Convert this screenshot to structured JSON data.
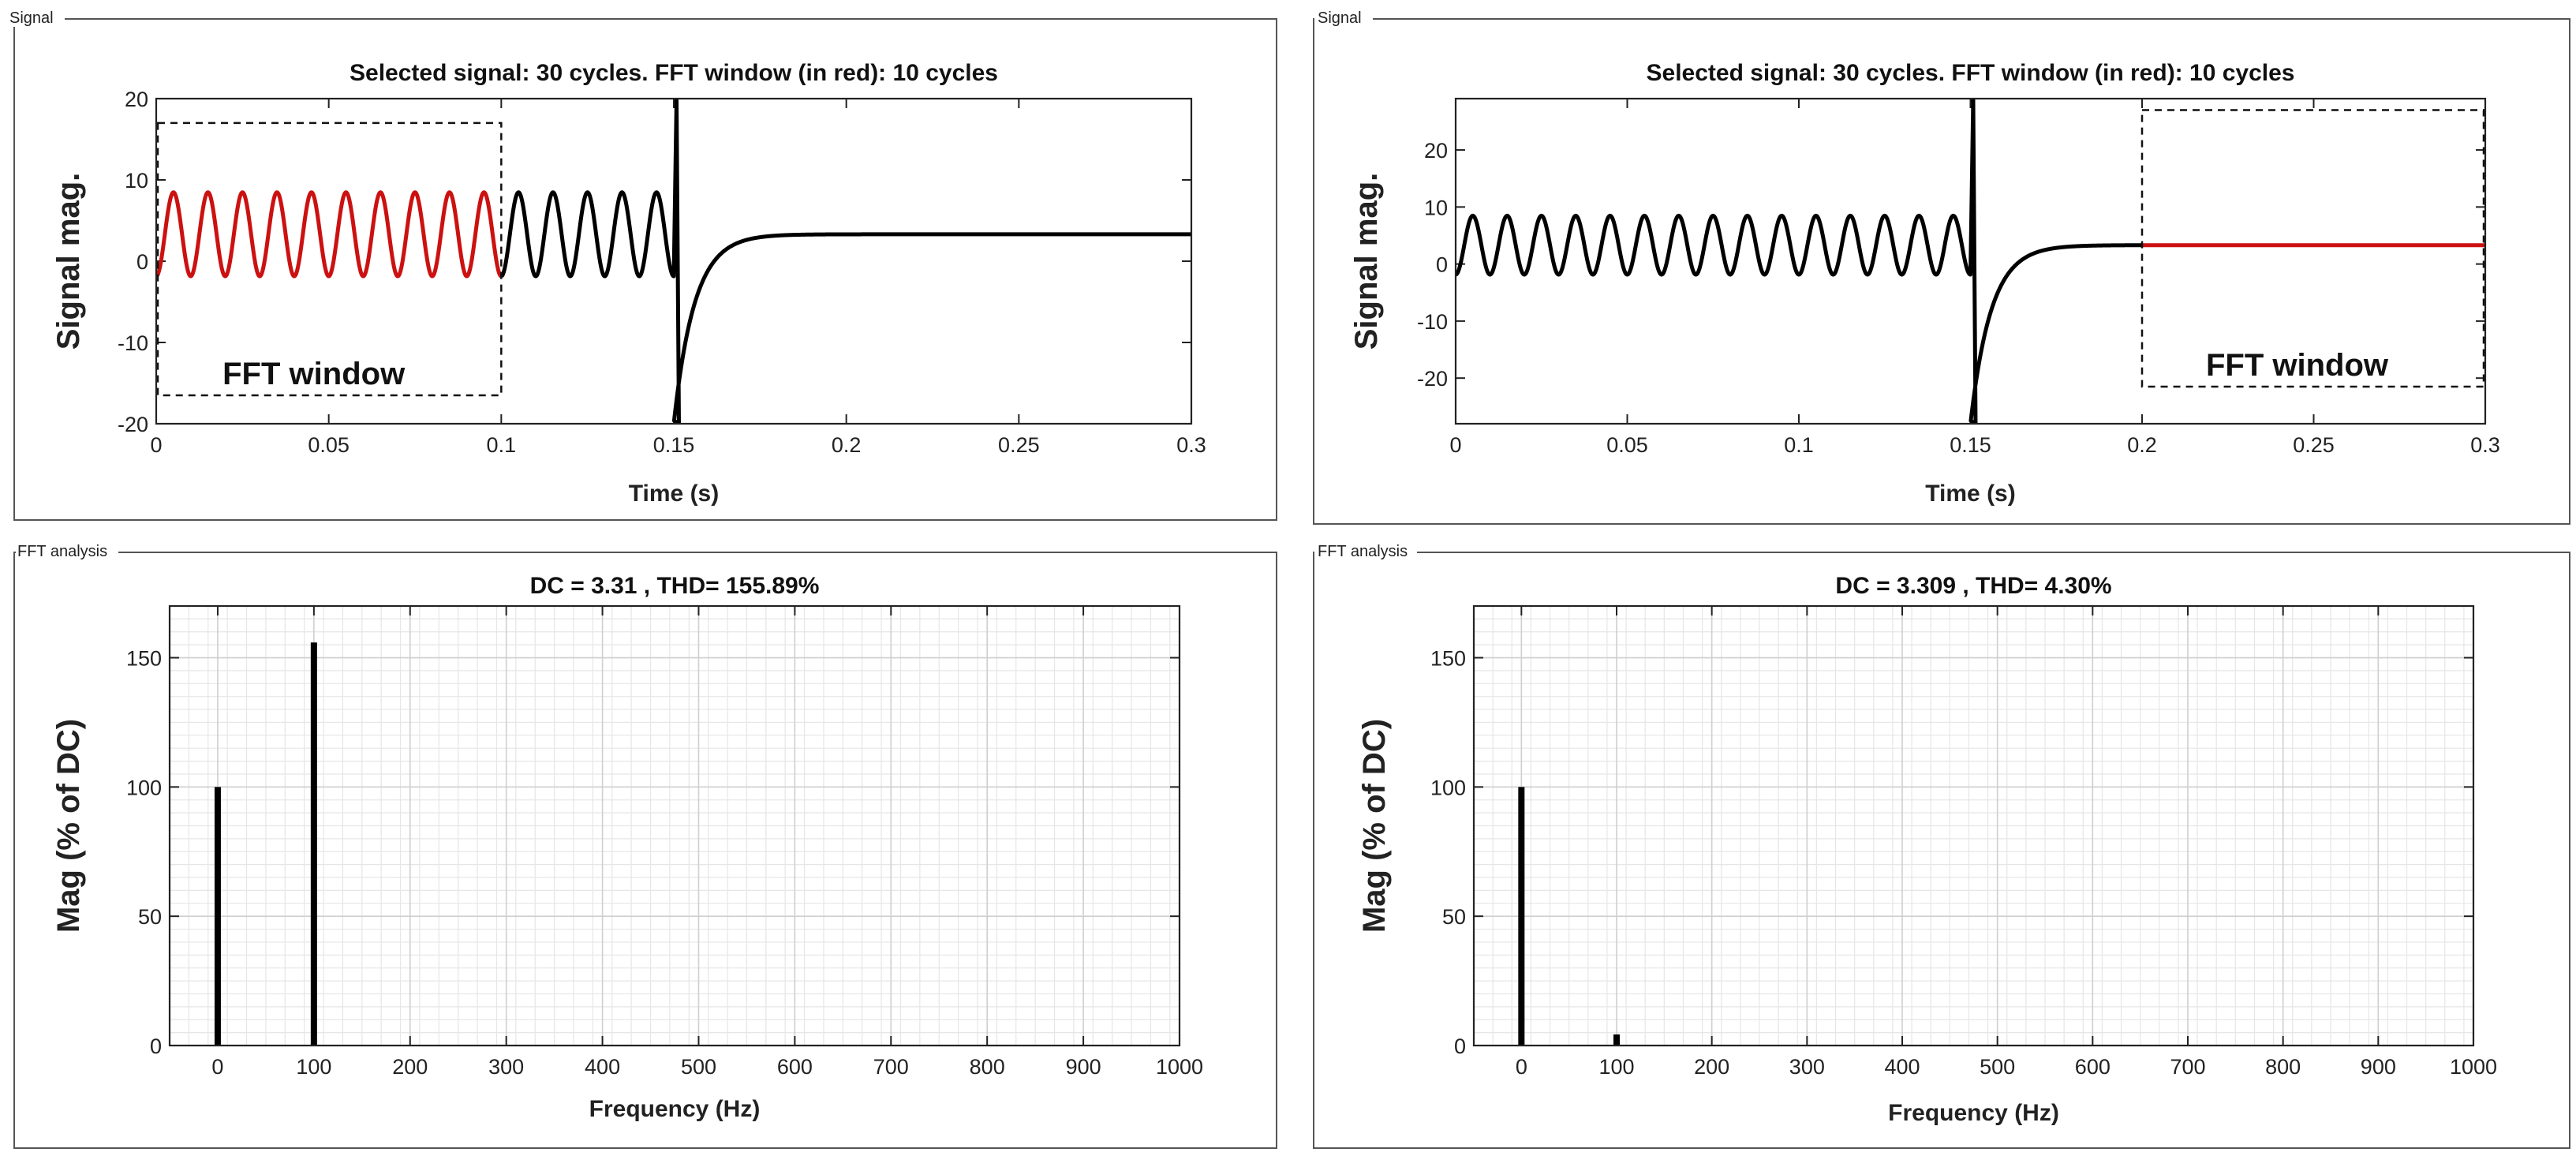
{
  "panel_titles": {
    "signal": "Signal",
    "fft": "FFT analysis"
  },
  "colors": {
    "signal_line": "#000000",
    "fft_window_line": "#cc1111",
    "grid_minor": "#e6e6e6",
    "grid_major": "#cfcfcf",
    "frame": "#444444"
  },
  "chart_data": [
    {
      "id": "signal-left",
      "type": "line",
      "title": "Selected signal: 30 cycles. FFT window (in red): 10 cycles",
      "xlabel": "Time (s)",
      "ylabel": "Signal mag.",
      "xlim": [
        0,
        0.3
      ],
      "ylim": [
        -20,
        20
      ],
      "xticks": [
        0,
        0.05,
        0.1,
        0.15,
        0.2,
        0.25,
        0.3
      ],
      "xtick_labels": [
        "0",
        "0.05",
        "0.1",
        "0.15",
        "0.2",
        "0.25",
        "0.3"
      ],
      "yticks": [
        -20,
        -10,
        0,
        10,
        20
      ],
      "ytick_labels": [
        "-20",
        "-10",
        "0",
        "10",
        "20"
      ],
      "signal": {
        "oscillation_end": 0.15,
        "frequency_hz": 100,
        "offset": 3.31,
        "amplitude": 5.16,
        "spike_top": 20,
        "spike_bottom": -20,
        "steady_value": 3.31
      },
      "fft_window": {
        "start": 0,
        "end": 0.1,
        "label": "FFT window",
        "y_top": 17,
        "y_bottom": -16.5
      }
    },
    {
      "id": "signal-right",
      "type": "line",
      "title": "Selected signal: 30 cycles. FFT window (in red): 10 cycles",
      "xlabel": "Time (s)",
      "ylabel": "Signal mag.",
      "xlim": [
        0,
        0.3
      ],
      "ylim": [
        -28,
        29
      ],
      "xticks": [
        0,
        0.05,
        0.1,
        0.15,
        0.2,
        0.25,
        0.3
      ],
      "xtick_labels": [
        "0",
        "0.05",
        "0.1",
        "0.15",
        "0.2",
        "0.25",
        "0.3"
      ],
      "yticks": [
        -20,
        -10,
        0,
        10,
        20
      ],
      "ytick_labels": [
        "-20",
        "-10",
        "0",
        "10",
        "20"
      ],
      "signal": {
        "oscillation_end": 0.15,
        "frequency_hz": 100,
        "offset": 3.31,
        "amplitude": 5.16,
        "spike_top": 29,
        "spike_bottom": -28,
        "steady_value": 3.31
      },
      "fft_window": {
        "start": 0.2,
        "end": 0.3,
        "label": "FFT window",
        "y_top": 27,
        "y_bottom": -21.5
      }
    },
    {
      "id": "fft-left",
      "type": "bar",
      "title": "DC = 3.31 , THD= 155.89%",
      "xlabel": "Frequency (Hz)",
      "ylabel": "Mag (% of DC)",
      "xlim": [
        -50,
        1000
      ],
      "ylim": [
        0,
        170
      ],
      "xticks": [
        0,
        100,
        200,
        300,
        400,
        500,
        600,
        700,
        800,
        900,
        1000
      ],
      "xtick_labels": [
        "0",
        "100",
        "200",
        "300",
        "400",
        "500",
        "600",
        "700",
        "800",
        "900",
        "1000"
      ],
      "yticks": [
        0,
        50,
        100,
        150
      ],
      "ytick_labels": [
        "0",
        "50",
        "100",
        "150"
      ],
      "bars": [
        {
          "x": 0,
          "value": 100
        },
        {
          "x": 100,
          "value": 155.89
        }
      ]
    },
    {
      "id": "fft-right",
      "type": "bar",
      "title": "DC = 3.309 , THD= 4.30%",
      "xlabel": "Frequency (Hz)",
      "ylabel": "Mag (% of DC)",
      "xlim": [
        -50,
        1000
      ],
      "ylim": [
        0,
        170
      ],
      "xticks": [
        0,
        100,
        200,
        300,
        400,
        500,
        600,
        700,
        800,
        900,
        1000
      ],
      "xtick_labels": [
        "0",
        "100",
        "200",
        "300",
        "400",
        "500",
        "600",
        "700",
        "800",
        "900",
        "1000"
      ],
      "yticks": [
        0,
        50,
        100,
        150
      ],
      "ytick_labels": [
        "0",
        "50",
        "100",
        "150"
      ],
      "bars": [
        {
          "x": 0,
          "value": 100
        },
        {
          "x": 100,
          "value": 4.3
        }
      ]
    }
  ]
}
